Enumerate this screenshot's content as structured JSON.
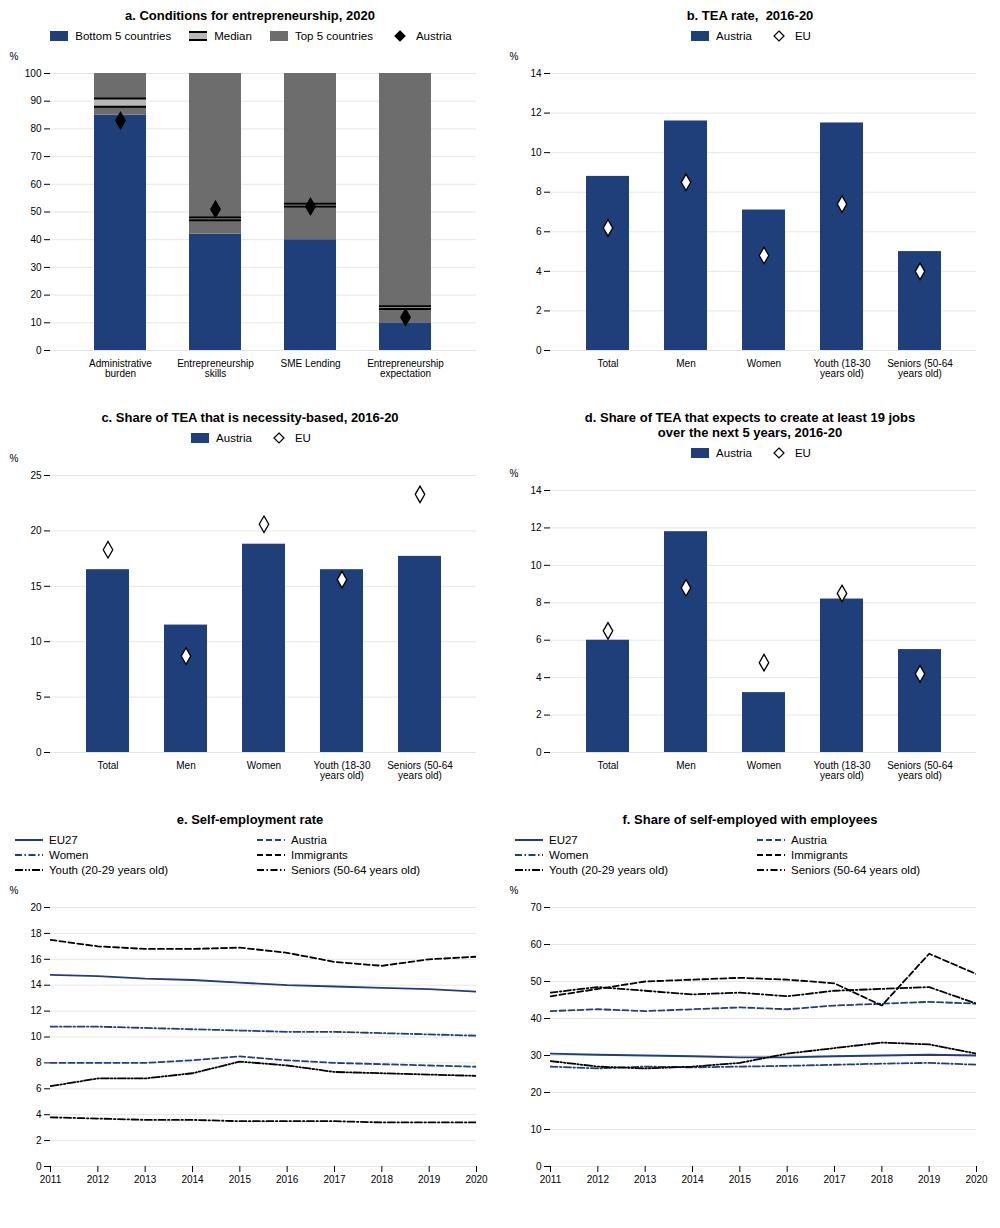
{
  "chart_data": [
    {
      "type": "bar",
      "title": "a. Conditions for entrepreneurship, 2020",
      "categories": [
        "Administrative\nburden",
        "Entrepreneurship\nskills",
        "SME Lending",
        "Entrepreneurship\nexpectation"
      ],
      "stacked": true,
      "series": [
        {
          "name": "Bottom 5 countries",
          "type": "bar",
          "color": "#1f3f7a",
          "values": [
            85,
            42,
            40,
            10
          ]
        },
        {
          "name": "Median",
          "type": "band",
          "color": "#b8b8b8",
          "low": [
            88,
            47,
            52,
            15
          ],
          "high": [
            91,
            48,
            53,
            16
          ]
        },
        {
          "name": "Top 5 countries",
          "type": "bar",
          "color": "#6d6d6d",
          "values": [
            15,
            58,
            60,
            90
          ]
        },
        {
          "name": "Austria",
          "type": "scatter",
          "marker": "diamond",
          "color": "black",
          "values": [
            83,
            51,
            52,
            12
          ]
        }
      ],
      "ylabel": "%",
      "ylim": [
        0,
        100
      ],
      "yticks": [
        0,
        10,
        20,
        30,
        40,
        50,
        60,
        70,
        80,
        90,
        100
      ],
      "grid": true,
      "legend": "top"
    },
    {
      "type": "bar",
      "title": "b. TEA rate,  2016-20",
      "categories": [
        "Total",
        "Men",
        "Women",
        "Youth (18-30\nyears old)",
        "Seniors (50-64\nyears old)"
      ],
      "series": [
        {
          "name": "Austria",
          "type": "bar",
          "color": "#1f3f7a",
          "values": [
            8.8,
            11.6,
            7.1,
            11.5,
            5.0
          ]
        },
        {
          "name": "EU",
          "type": "scatter",
          "marker": "diamond",
          "color": "white",
          "values": [
            6.2,
            8.5,
            4.8,
            7.4,
            4.0
          ]
        }
      ],
      "ylabel": "%",
      "ylim": [
        0,
        14
      ],
      "yticks": [
        0,
        2,
        4,
        6,
        8,
        10,
        12,
        14
      ],
      "grid": true,
      "legend": "top"
    },
    {
      "type": "bar",
      "title": "c. Share of TEA that is necessity-based, 2016-20",
      "categories": [
        "Total",
        "Men",
        "Women",
        "Youth (18-30\nyears old)",
        "Seniors (50-64\nyears old)"
      ],
      "series": [
        {
          "name": "Austria",
          "type": "bar",
          "color": "#1f3f7a",
          "values": [
            16.5,
            11.5,
            18.8,
            16.5,
            17.7
          ]
        },
        {
          "name": "EU",
          "type": "scatter",
          "marker": "diamond",
          "color": "white",
          "values": [
            18.3,
            8.7,
            20.6,
            15.6,
            23.3
          ]
        }
      ],
      "ylabel": "%",
      "ylim": [
        0,
        25
      ],
      "yticks": [
        0,
        5,
        10,
        15,
        20,
        25
      ],
      "grid": true,
      "legend": "top"
    },
    {
      "type": "bar",
      "title": "d. Share of TEA that expects to create at least 19 jobs\nover the next 5 years, 2016-20",
      "categories": [
        "Total",
        "Men",
        "Women",
        "Youth (18-30\nyears old)",
        "Seniors (50-64\nyears old)"
      ],
      "series": [
        {
          "name": "Austria",
          "type": "bar",
          "color": "#1f3f7a",
          "values": [
            6.0,
            11.8,
            3.2,
            8.2,
            5.5
          ]
        },
        {
          "name": "EU",
          "type": "scatter",
          "marker": "diamond",
          "color": "white",
          "values": [
            6.5,
            8.8,
            4.8,
            8.5,
            4.2
          ]
        }
      ],
      "ylabel": "%",
      "ylim": [
        0,
        14
      ],
      "yticks": [
        0,
        2,
        4,
        6,
        8,
        10,
        12,
        14
      ],
      "grid": true,
      "legend": "top"
    },
    {
      "type": "line",
      "title": "e. Self-employment rate",
      "x": [
        2011,
        2012,
        2013,
        2014,
        2015,
        2016,
        2017,
        2018,
        2019,
        2020
      ],
      "xlim": [
        2011,
        2020
      ],
      "xticks": [
        2011,
        2012,
        2013,
        2014,
        2015,
        2016,
        2017,
        2018,
        2019,
        2020
      ],
      "series": [
        {
          "name": "EU27",
          "color": "#1f3f7a",
          "line_style": "solid",
          "values": [
            14.8,
            14.7,
            14.5,
            14.4,
            14.2,
            14.0,
            13.9,
            13.8,
            13.7,
            13.5
          ]
        },
        {
          "name": "Austria",
          "color": "#1f3f7a",
          "line_style": "dashed",
          "values": [
            8.0,
            8.0,
            8.0,
            8.2,
            8.5,
            8.2,
            8.0,
            7.9,
            7.8,
            7.7
          ]
        },
        {
          "name": "Women",
          "color": "#1f3f7a",
          "line_style": "dashdot",
          "values": [
            10.8,
            10.8,
            10.7,
            10.6,
            10.5,
            10.4,
            10.4,
            10.3,
            10.2,
            10.1
          ]
        },
        {
          "name": "Immigrants",
          "color": "black",
          "line_style": "dashed",
          "values": [
            17.5,
            17.0,
            16.8,
            16.8,
            16.9,
            16.5,
            15.8,
            15.5,
            16.0,
            16.2
          ]
        },
        {
          "name": "Youth (20-29 years old)",
          "color": "black",
          "line_style": "dashdotdot",
          "values": [
            6.2,
            6.8,
            6.8,
            7.2,
            8.1,
            7.8,
            7.3,
            7.2,
            7.1,
            7.0
          ]
        },
        {
          "name": "Seniors (50-64 years old)",
          "color": "black",
          "line_style": "dashdot",
          "values": [
            3.8,
            3.7,
            3.6,
            3.6,
            3.5,
            3.5,
            3.5,
            3.4,
            3.4,
            3.4
          ]
        }
      ],
      "ylabel": "%",
      "ylim": [
        0,
        20
      ],
      "yticks": [
        0,
        2,
        4,
        6,
        8,
        10,
        12,
        14,
        16,
        18,
        20
      ],
      "grid": true,
      "legend": "top"
    },
    {
      "type": "line",
      "title": "f. Share of self-employed with employees",
      "x": [
        2011,
        2012,
        2013,
        2014,
        2015,
        2016,
        2017,
        2018,
        2019,
        2020
      ],
      "xlim": [
        2011,
        2020
      ],
      "xticks": [
        2011,
        2012,
        2013,
        2014,
        2015,
        2016,
        2017,
        2018,
        2019,
        2020
      ],
      "series": [
        {
          "name": "EU27",
          "color": "#1f3f7a",
          "line_style": "solid",
          "values": [
            30.5,
            30.2,
            30.0,
            29.8,
            29.5,
            29.5,
            29.8,
            30.0,
            30.2,
            30.0
          ]
        },
        {
          "name": "Austria",
          "color": "#1f3f7a",
          "line_style": "dashed",
          "values": [
            42.0,
            42.5,
            42.0,
            42.5,
            43.0,
            42.5,
            43.5,
            44.0,
            44.5,
            44.0
          ]
        },
        {
          "name": "Women",
          "color": "#1f3f7a",
          "line_style": "dashdot",
          "values": [
            27.0,
            26.5,
            27.0,
            26.8,
            27.0,
            27.2,
            27.5,
            27.8,
            28.0,
            27.5
          ]
        },
        {
          "name": "Immigrants",
          "color": "black",
          "line_style": "dashed",
          "values": [
            46.0,
            48.0,
            50.0,
            50.5,
            51.0,
            50.5,
            49.5,
            43.5,
            57.5,
            52.0
          ]
        },
        {
          "name": "Youth (20-29 years old)",
          "color": "black",
          "line_style": "dashdotdot",
          "values": [
            28.5,
            27.0,
            26.5,
            27.0,
            28.0,
            30.5,
            32.0,
            33.5,
            33.0,
            30.5
          ]
        },
        {
          "name": "Seniors (50-64 years old)",
          "color": "black",
          "line_style": "dashdot",
          "values": [
            47.0,
            48.5,
            47.5,
            46.5,
            47.0,
            46.0,
            47.5,
            48.0,
            48.5,
            44.0
          ]
        }
      ],
      "ylabel": "%",
      "ylim": [
        0,
        70
      ],
      "yticks": [
        0,
        10,
        20,
        30,
        40,
        50,
        60,
        70
      ],
      "grid": true,
      "legend": "top"
    }
  ]
}
